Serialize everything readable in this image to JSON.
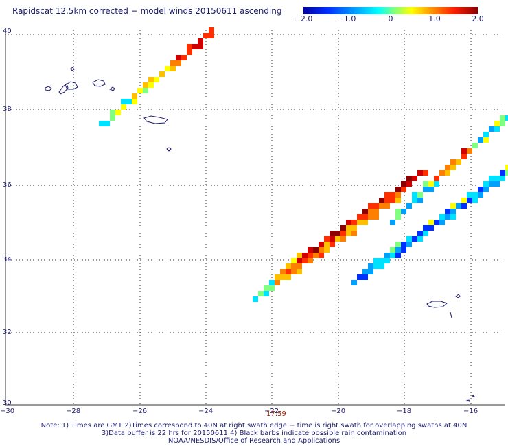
{
  "title": "Rapidscat 12.5km corrected − model winds 20150611 ascending",
  "colorbar": {
    "ticks": [
      {
        "value": -2.0,
        "label": "−2.0"
      },
      {
        "value": -1.0,
        "label": "−1.0"
      },
      {
        "value": 0,
        "label": "0"
      },
      {
        "value": 1.0,
        "label": "1.0"
      },
      {
        "value": 2.0,
        "label": "2.0"
      }
    ],
    "range": [
      -2.0,
      2.0
    ]
  },
  "axes": {
    "lon_ticks": [
      {
        "value": -30,
        "label": "−30"
      },
      {
        "value": -28,
        "label": "−28"
      },
      {
        "value": -26,
        "label": "−26"
      },
      {
        "value": -24,
        "label": "−24"
      },
      {
        "value": -22,
        "label": "−22"
      },
      {
        "value": -20,
        "label": "−20"
      },
      {
        "value": -18,
        "label": "−18"
      },
      {
        "value": -16,
        "label": "−16"
      }
    ],
    "lat_ticks": [
      {
        "value": 30,
        "label": "30"
      },
      {
        "value": 32,
        "label": "32"
      },
      {
        "value": 34,
        "label": "34"
      },
      {
        "value": 36,
        "label": "36"
      },
      {
        "value": 38,
        "label": "38"
      },
      {
        "value": 40,
        "label": "40"
      }
    ],
    "lon_range": [
      -30,
      -15
    ],
    "lat_range": [
      30,
      40
    ],
    "grid": true
  },
  "time_label": "17:59",
  "notes": {
    "line1": "Note: 1) Times are GMT 2)Times correspond to 40N at right swath edge − time is right swath for overlapping swaths at 40N",
    "line2": "3)Data buffer is 22 hrs for 20150611 4) Black barbs indicate possible rain contamination",
    "line3": "NOAA/NESDIS/Office of Research and Applications"
  },
  "colors": {
    "text": "#1a1a6e",
    "coast": "#1a1a6e",
    "grid": "#333333",
    "time": "#a02000"
  }
}
